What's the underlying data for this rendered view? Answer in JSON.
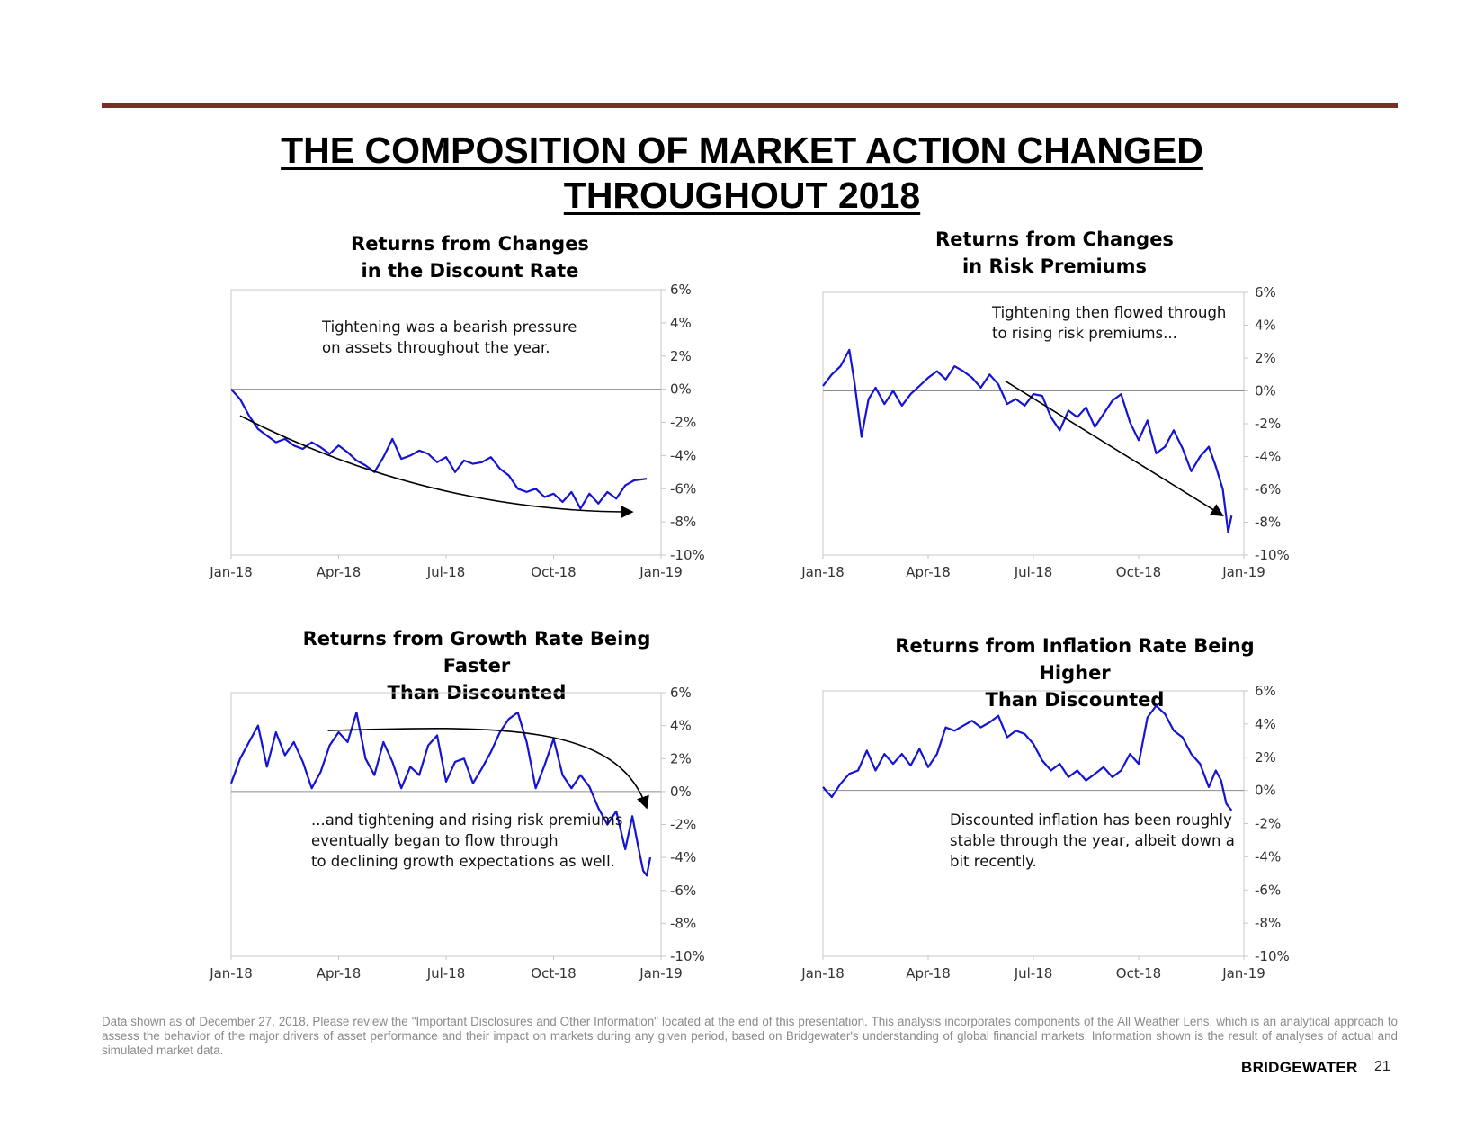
{
  "colors": {
    "rule": "#7a2f24",
    "series": "#1414d2",
    "axis": "#c8c8c8",
    "zero_line": "#8c8c8c",
    "arrow": "#000000"
  },
  "title": {
    "line1": "THE COMPOSITION OF MARKET ACTION CHANGED",
    "line2": "THROUGHOUT 2018"
  },
  "footnote": "Data shown as of December 27, 2018. Please review the \"Important Disclosures and Other Information\" located at the end of this presentation. This analysis incorporates components of the All Weather Lens, which is an analytical approach to assess the behavior of the major drivers of asset performance and their impact on markets during any given period, based on Bridgewater's understanding of global financial markets. Information shown is the result of analyses of actual and simulated market data.",
  "brand": "BRIDGEWATER",
  "page_number": "21",
  "chart_data": [
    {
      "type": "line",
      "title_line1": "Returns  from Changes",
      "title_line2": "in the Discount Rate",
      "annotation_lines": [
        "Tightening was a bearish pressure",
        "on assets throughout the year."
      ],
      "x_ticks": [
        "Jan-18",
        "Apr-18",
        "Jul-18",
        "Oct-18",
        "Jan-19"
      ],
      "y_ticks": [
        "6%",
        "4%",
        "2%",
        "0%",
        "-2%",
        "-4%",
        "-6%",
        "-8%",
        "-10%"
      ],
      "ylim": [
        -10,
        6
      ],
      "xlim": [
        0,
        12
      ],
      "series": {
        "name": "Returns",
        "x": [
          0,
          0.25,
          0.5,
          0.75,
          1,
          1.25,
          1.5,
          1.75,
          2,
          2.25,
          2.5,
          2.75,
          3,
          3.25,
          3.5,
          3.75,
          4,
          4.25,
          4.5,
          4.75,
          5,
          5.25,
          5.5,
          5.75,
          6,
          6.25,
          6.5,
          6.75,
          7,
          7.25,
          7.5,
          7.75,
          8,
          8.25,
          8.5,
          8.75,
          9,
          9.25,
          9.5,
          9.75,
          10,
          10.25,
          10.5,
          10.75,
          11,
          11.25,
          11.6
        ],
        "values": [
          0,
          -0.6,
          -1.6,
          -2.4,
          -2.8,
          -3.2,
          -3.0,
          -3.4,
          -3.6,
          -3.2,
          -3.5,
          -3.9,
          -3.4,
          -3.8,
          -4.3,
          -4.6,
          -5.0,
          -4.1,
          -3.0,
          -4.2,
          -4.0,
          -3.7,
          -3.9,
          -4.4,
          -4.1,
          -5.0,
          -4.3,
          -4.5,
          -4.4,
          -4.1,
          -4.8,
          -5.2,
          -6.0,
          -6.2,
          -6.0,
          -6.5,
          -6.3,
          -6.8,
          -6.2,
          -7.2,
          -6.3,
          -6.9,
          -6.2,
          -6.6,
          -5.8,
          -5.5,
          -5.4
        ]
      },
      "arrow": {
        "shape": "curve",
        "from": [
          0.25,
          -1.6
        ],
        "to": [
          11.2,
          -7.4
        ]
      }
    },
    {
      "type": "line",
      "title_line1": "Returns  from Changes",
      "title_line2": "in Risk Premiums",
      "annotation_lines": [
        "Tightening then flowed through",
        "to rising risk premiums..."
      ],
      "x_ticks": [
        "Jan-18",
        "Apr-18",
        "Jul-18",
        "Oct-18",
        "Jan-19"
      ],
      "y_ticks": [
        "6%",
        "4%",
        "2%",
        "0%",
        "-2%",
        "-4%",
        "-6%",
        "-8%",
        "-10%"
      ],
      "ylim": [
        -10,
        6
      ],
      "xlim": [
        0,
        12
      ],
      "series": {
        "name": "Returns",
        "x": [
          0,
          0.25,
          0.5,
          0.75,
          0.9,
          1.1,
          1.3,
          1.5,
          1.75,
          2,
          2.25,
          2.5,
          2.75,
          3,
          3.25,
          3.5,
          3.75,
          4,
          4.25,
          4.5,
          4.75,
          5,
          5.25,
          5.5,
          5.75,
          6,
          6.25,
          6.5,
          6.75,
          7,
          7.25,
          7.5,
          7.75,
          8,
          8.25,
          8.5,
          8.75,
          9,
          9.25,
          9.5,
          9.75,
          10,
          10.25,
          10.5,
          10.75,
          11,
          11.2,
          11.4,
          11.55,
          11.65
        ],
        "values": [
          0.3,
          1.0,
          1.5,
          2.5,
          0.5,
          -2.8,
          -0.5,
          0.2,
          -0.8,
          0.0,
          -0.9,
          -0.2,
          0.3,
          0.8,
          1.2,
          0.7,
          1.5,
          1.2,
          0.8,
          0.2,
          1.0,
          0.4,
          -0.8,
          -0.5,
          -0.9,
          -0.2,
          -0.3,
          -1.6,
          -2.4,
          -1.2,
          -1.6,
          -1.0,
          -2.2,
          -1.4,
          -0.6,
          -0.2,
          -1.9,
          -3.0,
          -1.8,
          -3.8,
          -3.4,
          -2.4,
          -3.5,
          -4.9,
          -4.0,
          -3.4,
          -4.6,
          -6.0,
          -8.6,
          -7.6
        ]
      },
      "arrow": {
        "shape": "straight",
        "from": [
          5.2,
          0.6
        ],
        "to": [
          11.4,
          -7.6
        ]
      }
    },
    {
      "type": "line",
      "title_line1": "Returns  from Growth Rate Being Faster",
      "title_line2": "Than Discounted",
      "annotation_lines": [
        "...and tightening and rising risk premiums",
        "eventually began to flow through",
        "to declining growth expectations as well."
      ],
      "x_ticks": [
        "Jan-18",
        "Apr-18",
        "Jul-18",
        "Oct-18",
        "Jan-19"
      ],
      "y_ticks": [
        "6%",
        "4%",
        "2%",
        "0%",
        "-2%",
        "-4%",
        "-6%",
        "-8%",
        "-10%"
      ],
      "ylim": [
        -10,
        6
      ],
      "xlim": [
        0,
        12
      ],
      "series": {
        "name": "Returns",
        "x": [
          0,
          0.25,
          0.5,
          0.75,
          1,
          1.25,
          1.5,
          1.75,
          2,
          2.25,
          2.5,
          2.75,
          3,
          3.25,
          3.5,
          3.75,
          4,
          4.25,
          4.5,
          4.75,
          5,
          5.25,
          5.5,
          5.75,
          6,
          6.25,
          6.5,
          6.75,
          7,
          7.25,
          7.5,
          7.75,
          8,
          8.25,
          8.5,
          8.75,
          9,
          9.25,
          9.5,
          9.75,
          10,
          10.25,
          10.5,
          10.75,
          11,
          11.2,
          11.35,
          11.5,
          11.6,
          11.7
        ],
        "values": [
          0.5,
          2.0,
          3.0,
          4.0,
          1.5,
          3.6,
          2.2,
          3.0,
          1.8,
          0.2,
          1.2,
          2.8,
          3.6,
          3.0,
          4.8,
          2.0,
          1.0,
          3.0,
          1.8,
          0.2,
          1.5,
          1.0,
          2.8,
          3.4,
          0.6,
          1.8,
          2.0,
          0.5,
          1.4,
          2.4,
          3.6,
          4.4,
          4.8,
          3.0,
          0.2,
          1.6,
          3.2,
          1.0,
          0.2,
          1.0,
          0.3,
          -1.0,
          -2.0,
          -1.2,
          -3.5,
          -1.5,
          -3.2,
          -4.8,
          -5.1,
          -4.0
        ]
      },
      "arrow": {
        "shape": "curve",
        "from": [
          2.7,
          3.7
        ],
        "to": [
          11.6,
          -1.0
        ]
      }
    },
    {
      "type": "line",
      "title_line1": "Returns  from Inflation Rate Being Higher",
      "title_line2": "Than Discounted",
      "annotation_lines": [
        "Discounted inflation has been roughly",
        "stable through the year, albeit down a",
        "bit recently."
      ],
      "x_ticks": [
        "Jan-18",
        "Apr-18",
        "Jul-18",
        "Oct-18",
        "Jan-19"
      ],
      "y_ticks": [
        "6%",
        "4%",
        "2%",
        "0%",
        "-2%",
        "-4%",
        "-6%",
        "-8%",
        "-10%"
      ],
      "ylim": [
        -10,
        6
      ],
      "xlim": [
        0,
        12
      ],
      "series": {
        "name": "Returns",
        "x": [
          0,
          0.25,
          0.5,
          0.75,
          1,
          1.25,
          1.5,
          1.75,
          2,
          2.25,
          2.5,
          2.75,
          3,
          3.25,
          3.5,
          3.75,
          4,
          4.25,
          4.5,
          4.75,
          5,
          5.25,
          5.5,
          5.75,
          6,
          6.25,
          6.5,
          6.75,
          7,
          7.25,
          7.5,
          7.75,
          8,
          8.25,
          8.5,
          8.75,
          9,
          9.25,
          9.5,
          9.75,
          10,
          10.25,
          10.5,
          10.75,
          11,
          11.2,
          11.35,
          11.5,
          11.65
        ],
        "values": [
          0.2,
          -0.4,
          0.4,
          1.0,
          1.2,
          2.4,
          1.2,
          2.2,
          1.6,
          2.2,
          1.5,
          2.5,
          1.4,
          2.2,
          3.8,
          3.6,
          3.9,
          4.2,
          3.8,
          4.1,
          4.5,
          3.2,
          3.6,
          3.4,
          2.8,
          1.8,
          1.2,
          1.6,
          0.8,
          1.2,
          0.6,
          1.0,
          1.4,
          0.8,
          1.2,
          2.2,
          1.6,
          4.4,
          5.1,
          4.6,
          3.6,
          3.2,
          2.2,
          1.6,
          0.2,
          1.2,
          0.6,
          -0.8,
          -1.2
        ]
      }
    }
  ]
}
